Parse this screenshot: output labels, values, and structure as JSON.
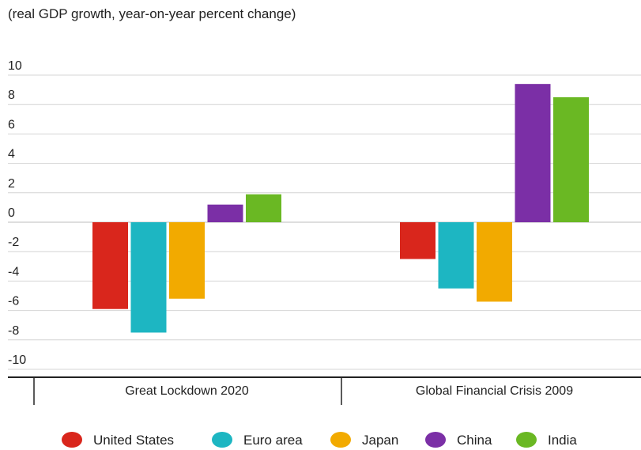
{
  "chart_data": {
    "type": "bar",
    "subtitle": "(real GDP growth, year-on-year percent change)",
    "categories": [
      "Great Lockdown 2020",
      "Global Financial Crisis 2009"
    ],
    "series": [
      {
        "name": "United States",
        "color": "#d9261c",
        "values": [
          -5.9,
          -2.5
        ]
      },
      {
        "name": "Euro area",
        "color": "#1db6c2",
        "values": [
          -7.5,
          -4.5
        ]
      },
      {
        "name": "Japan",
        "color": "#f2aa00",
        "values": [
          -5.2,
          -5.4
        ]
      },
      {
        "name": "China",
        "color": "#7b2fa6",
        "values": [
          1.2,
          9.4
        ]
      },
      {
        "name": "India",
        "color": "#6ab823",
        "values": [
          1.9,
          8.5
        ]
      }
    ],
    "y_ticks": [
      "10",
      "8",
      "6",
      "4",
      "2",
      "0",
      "-2",
      "-4",
      "-6",
      "-8",
      "-10"
    ],
    "ylim": [
      -10,
      10
    ],
    "grid": true,
    "legend_position": "bottom"
  }
}
